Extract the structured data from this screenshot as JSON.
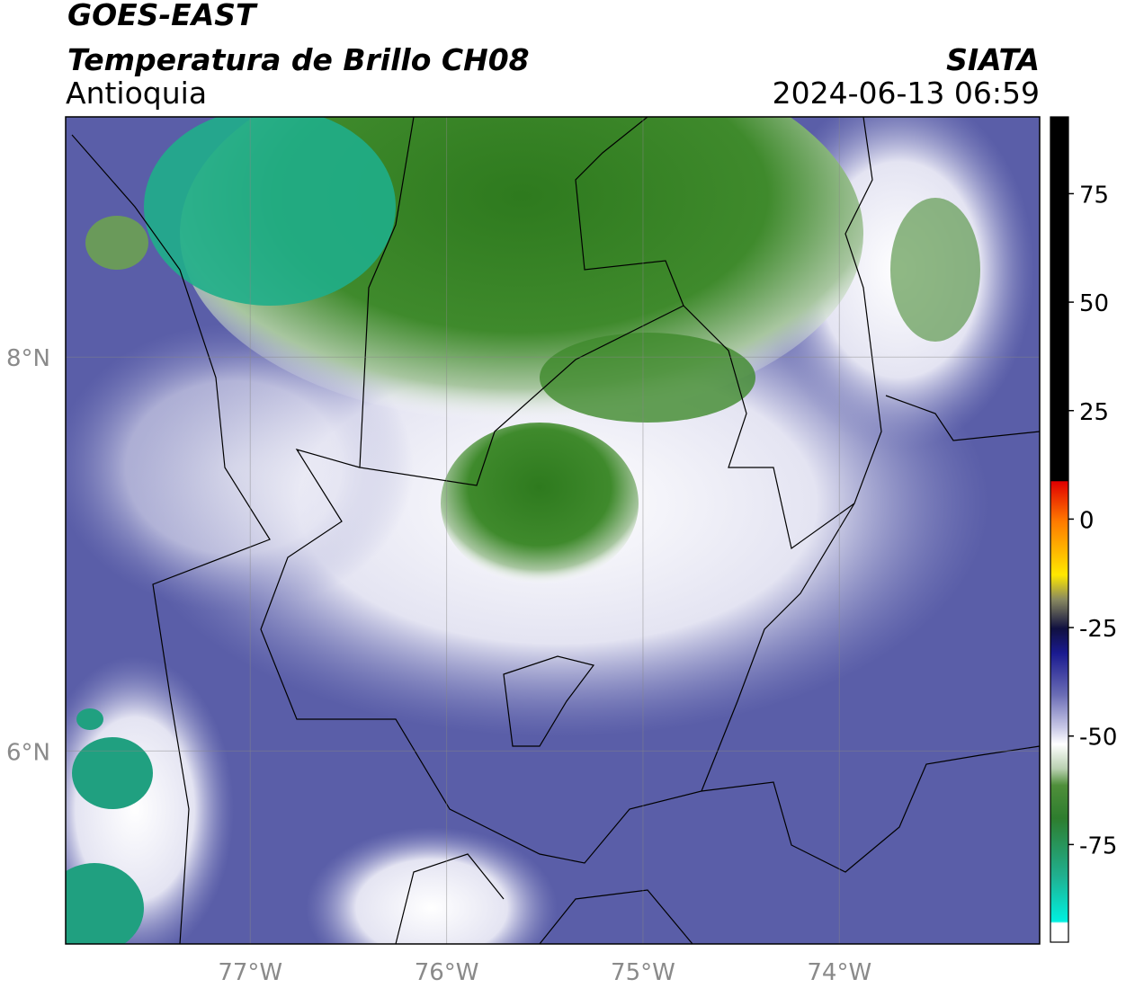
{
  "header": {
    "title": "GOES-EAST",
    "product": "Temperatura de Brillo CH08",
    "region": "Antioquia",
    "source": "SIATA",
    "datetime": "2024-06-13 06:59"
  },
  "map": {
    "xlim": [
      -77.94,
      -72.98
    ],
    "ylim": [
      5.02,
      9.22
    ],
    "xticks": [
      {
        "value": -77,
        "label": "77°W"
      },
      {
        "value": -76,
        "label": "76°W"
      },
      {
        "value": -75,
        "label": "75°W"
      },
      {
        "value": -74,
        "label": "74°W"
      }
    ],
    "yticks": [
      {
        "value": 8,
        "label": "8°N"
      },
      {
        "value": 6,
        "label": "6°N"
      }
    ],
    "grid": true
  },
  "colorbar": {
    "lim": [
      -97.5,
      92.7
    ],
    "ticks": [
      75,
      50,
      25,
      0,
      -25,
      -50,
      -75
    ]
  }
}
